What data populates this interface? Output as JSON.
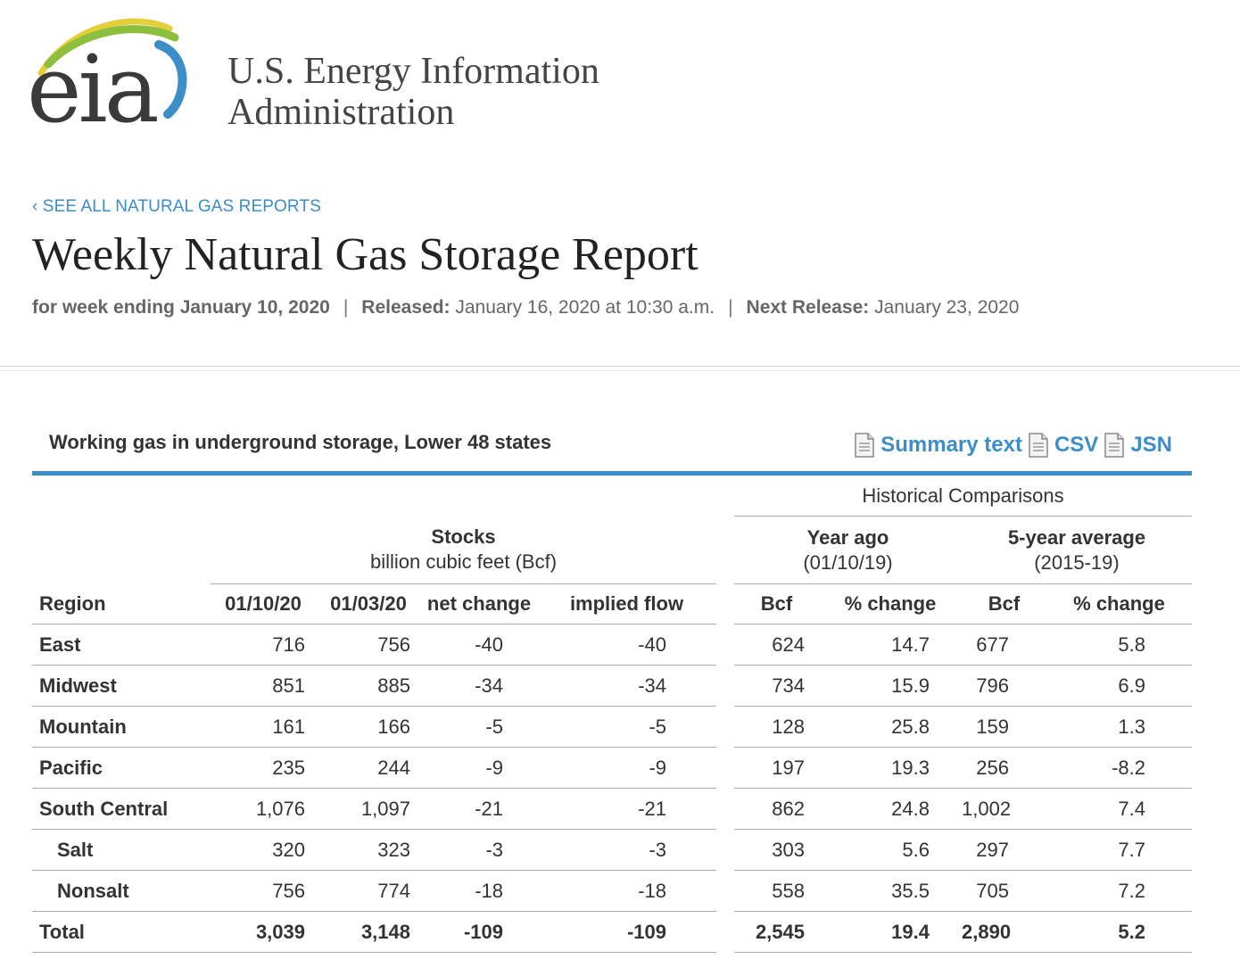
{
  "header": {
    "logo_text": "eia",
    "agency_line1": "U.S. Energy Information",
    "agency_line2": "Administration"
  },
  "nav": {
    "back_link": "‹ SEE ALL NATURAL GAS REPORTS"
  },
  "report": {
    "title": "Weekly Natural Gas Storage Report",
    "week_ending": "for week ending January 10, 2020",
    "released_label": "Released:",
    "released_value": "January 16, 2020 at 10:30 a.m.",
    "next_label": "Next Release:",
    "next_value": "January 23, 2020",
    "separator": "|"
  },
  "table": {
    "caption": "Working gas in underground storage, Lower 48 states",
    "downloads": [
      {
        "label": "Summary text",
        "icon": "document-icon"
      },
      {
        "label": "CSV",
        "icon": "document-icon"
      },
      {
        "label": "JSN",
        "icon": "document-icon"
      }
    ],
    "historical_title": "Historical Comparisons",
    "stocks_title": "Stocks",
    "stocks_subtitle": "billion cubic feet (Bcf)",
    "year_ago_title": "Year ago",
    "year_ago_subtitle": "(01/10/19)",
    "five_year_title": "5-year average",
    "five_year_subtitle": "(2015-19)",
    "columns": [
      "Region",
      "01/10/20",
      "01/03/20",
      "net change",
      "implied flow",
      "Bcf",
      "% change",
      "Bcf",
      "% change"
    ],
    "rows": [
      {
        "region": "East",
        "sub": false,
        "cells": [
          "716",
          "756",
          "-40",
          "-40",
          "624",
          "14.7",
          "677",
          "5.8"
        ]
      },
      {
        "region": "Midwest",
        "sub": false,
        "cells": [
          "851",
          "885",
          "-34",
          "-34",
          "734",
          "15.9",
          "796",
          "6.9"
        ]
      },
      {
        "region": "Mountain",
        "sub": false,
        "cells": [
          "161",
          "166",
          "-5",
          "-5",
          "128",
          "25.8",
          "159",
          "1.3"
        ]
      },
      {
        "region": "Pacific",
        "sub": false,
        "cells": [
          "235",
          "244",
          "-9",
          "-9",
          "197",
          "19.3",
          "256",
          "-8.2"
        ]
      },
      {
        "region": "South Central",
        "sub": false,
        "cells": [
          "1,076",
          "1,097",
          "-21",
          "-21",
          "862",
          "24.8",
          "1,002",
          "7.4"
        ]
      },
      {
        "region": "Salt",
        "sub": true,
        "cells": [
          "320",
          "323",
          "-3",
          "-3",
          "303",
          "5.6",
          "297",
          "7.7"
        ]
      },
      {
        "region": "Nonsalt",
        "sub": true,
        "cells": [
          "756",
          "774",
          "-18",
          "-18",
          "558",
          "35.5",
          "705",
          "7.2"
        ]
      },
      {
        "region": "Total",
        "sub": false,
        "total": true,
        "cells": [
          "3,039",
          "3,148",
          "-109",
          "-109",
          "2,545",
          "19.4",
          "2,890",
          "5.2"
        ]
      }
    ]
  },
  "colors": {
    "link_blue": "#3b8ec8",
    "logo_green": "#8dbf3f",
    "logo_yellow": "#e3cf3a",
    "logo_blue": "#3b8ec8",
    "text_dark": "#333333"
  }
}
